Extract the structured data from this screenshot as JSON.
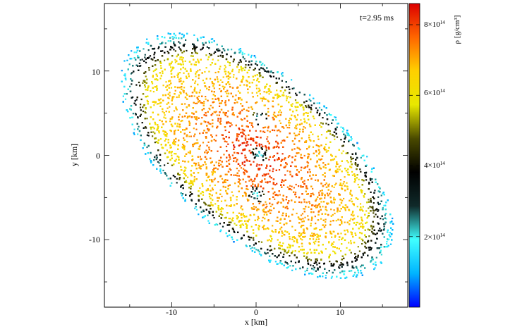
{
  "chart_data": {
    "type": "heatmap",
    "title": "",
    "annotation": "t=2.95 ms",
    "xlabel": "x [km]",
    "ylabel": "y [km]",
    "xlim": [
      -18,
      18
    ],
    "ylim": [
      -18,
      18
    ],
    "x_ticks": [
      -10,
      0,
      10
    ],
    "y_ticks": [
      -10,
      0,
      10
    ],
    "x_tick_labels": [
      "-10",
      "0",
      "10"
    ],
    "y_tick_labels": [
      "-10",
      "0",
      "10"
    ],
    "grid": false,
    "colorbar": {
      "label": "ρ [g/cm³]",
      "range": [
        0,
        860000000000000.0
      ],
      "ticks": [
        200000000000000.0,
        400000000000000.0,
        600000000000000.0,
        800000000000000.0
      ],
      "tick_mantissas": [
        "2×10",
        "4×10",
        "6×10",
        "8×10"
      ],
      "tick_exponents": [
        "14",
        "14",
        "14",
        "14"
      ],
      "colors": [
        "#0000ff",
        "#00b4ff",
        "#40ffff",
        "#102a2a",
        "#000000",
        "#4a4a00",
        "#e8e800",
        "#ffd000",
        "#ff6600",
        "#dd0000"
      ]
    },
    "structure": {
      "rotation_deg": -40,
      "major_axis_km": 19.5,
      "minor_axis_km": 9.8,
      "core_density": 840000000000000.0,
      "edge_density": 100000000000000.0,
      "bright_ring_density": 630000000000000.0,
      "low_density_spots": [
        {
          "x": 0.3,
          "y": 0.2
        },
        {
          "x": 0.4,
          "y": 4.5
        },
        {
          "x": -0.1,
          "y": -4.6
        }
      ]
    }
  }
}
